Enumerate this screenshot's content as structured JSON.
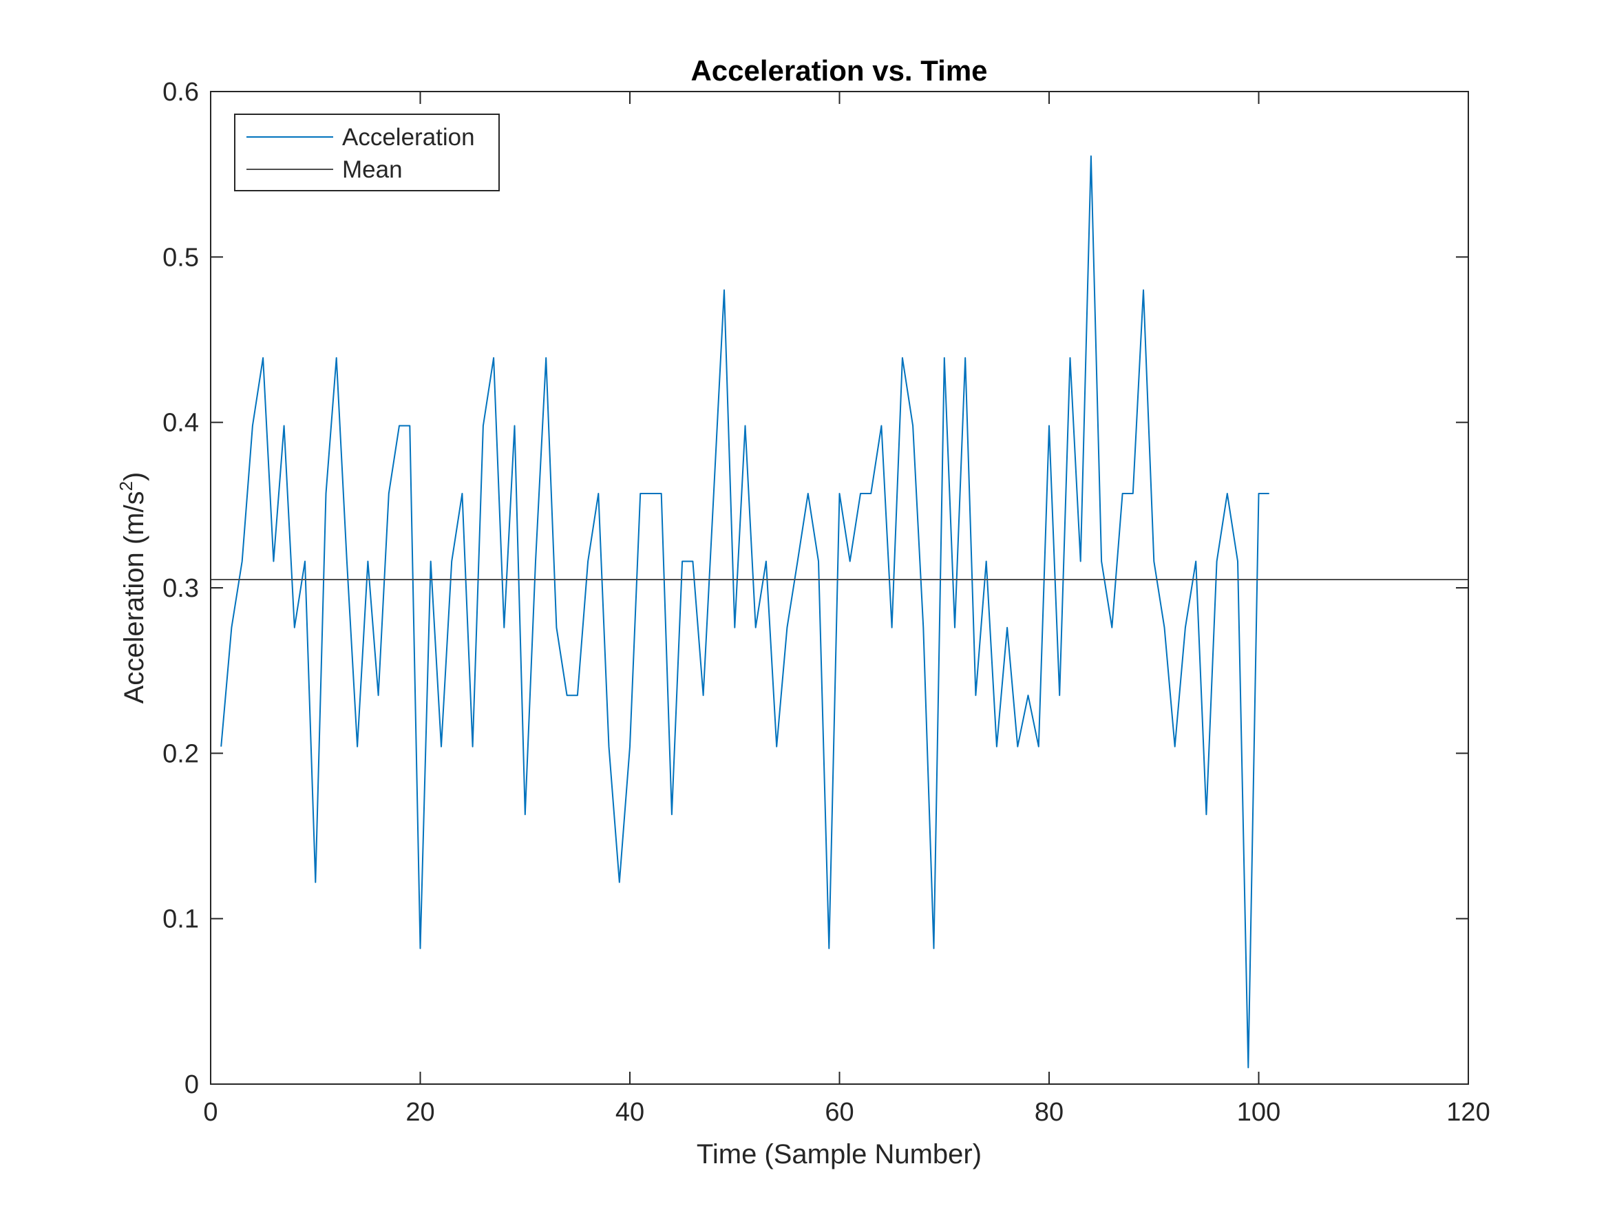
{
  "chart_data": {
    "type": "line",
    "title": "Acceleration vs. Time",
    "xlabel": "Time (Sample Number)",
    "ylabel_main": "Acceleration (m/s",
    "ylabel_sup": "2",
    "ylabel_close": ")",
    "xlim": [
      0,
      120
    ],
    "ylim": [
      0,
      0.6
    ],
    "xticks": [
      0,
      20,
      40,
      60,
      80,
      100,
      120
    ],
    "yticks": [
      0,
      0.1,
      0.2,
      0.3,
      0.4,
      0.5,
      0.6
    ],
    "xtick_labels": [
      "0",
      "20",
      "40",
      "60",
      "80",
      "100",
      "120"
    ],
    "ytick_labels": [
      "0",
      "0.1",
      "0.2",
      "0.3",
      "0.4",
      "0.5",
      "0.6"
    ],
    "grid": false,
    "legend_position": "top-left",
    "series": [
      {
        "name": "Acceleration",
        "color": "#0072BD",
        "x": [
          1,
          2,
          3,
          4,
          5,
          6,
          7,
          8,
          9,
          10,
          11,
          12,
          13,
          14,
          15,
          16,
          17,
          18,
          19,
          20,
          21,
          22,
          23,
          24,
          25,
          26,
          27,
          28,
          29,
          30,
          31,
          32,
          33,
          34,
          35,
          36,
          37,
          38,
          39,
          40,
          41,
          42,
          43,
          44,
          45,
          46,
          47,
          48,
          49,
          50,
          51,
          52,
          53,
          54,
          55,
          56,
          57,
          58,
          59,
          60,
          61,
          62,
          63,
          64,
          65,
          66,
          67,
          68,
          69,
          70,
          71,
          72,
          73,
          74,
          75,
          76,
          77,
          78,
          79,
          80,
          81,
          82,
          83,
          84,
          85,
          86,
          87,
          88,
          89,
          90,
          91,
          92,
          93,
          94,
          95,
          96,
          97,
          98,
          99,
          100,
          101
        ],
        "y": [
          0.204,
          0.276,
          0.316,
          0.398,
          0.439,
          0.316,
          0.398,
          0.276,
          0.316,
          0.122,
          0.357,
          0.439,
          0.316,
          0.204,
          0.316,
          0.235,
          0.357,
          0.398,
          0.398,
          0.082,
          0.316,
          0.204,
          0.316,
          0.357,
          0.204,
          0.398,
          0.439,
          0.276,
          0.398,
          0.163,
          0.316,
          0.439,
          0.276,
          0.235,
          0.235,
          0.316,
          0.357,
          0.204,
          0.122,
          0.204,
          0.357,
          0.357,
          0.357,
          0.163,
          0.316,
          0.316,
          0.235,
          0.357,
          0.48,
          0.276,
          0.398,
          0.276,
          0.316,
          0.204,
          0.276,
          0.316,
          0.357,
          0.316,
          0.082,
          0.357,
          0.316,
          0.357,
          0.357,
          0.398,
          0.276,
          0.439,
          0.398,
          0.276,
          0.082,
          0.439,
          0.276,
          0.439,
          0.235,
          0.316,
          0.204,
          0.276,
          0.204,
          0.235,
          0.204,
          0.398,
          0.235,
          0.439,
          0.316,
          0.561,
          0.316,
          0.276,
          0.357,
          0.357,
          0.48,
          0.316,
          0.276,
          0.204,
          0.276,
          0.316,
          0.163,
          0.316,
          0.357,
          0.316,
          0.01,
          0.357,
          0.357
        ]
      },
      {
        "name": "Mean",
        "color": "#4D4D4D",
        "type": "hline",
        "y": 0.305
      }
    ]
  }
}
